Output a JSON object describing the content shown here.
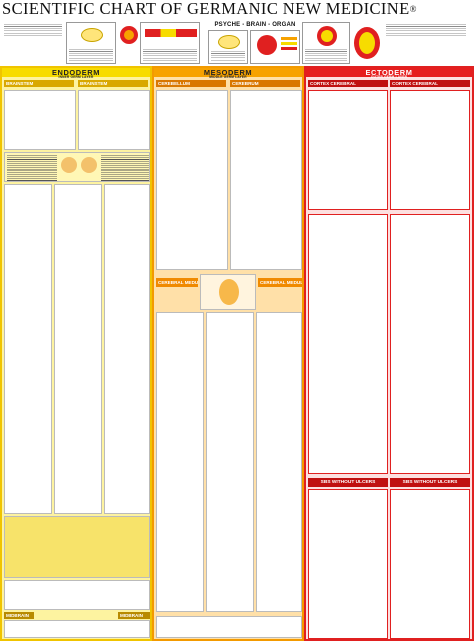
{
  "title": {
    "text": "SCIENTIFIC CHART OF GERMANIC NEW MEDICINE",
    "mark": "®"
  },
  "header": {
    "psyche_brain_organ": "PSYCHE - BRAIN - ORGAN"
  },
  "germ_layers": {
    "endoderm": {
      "name": "ENDODERM",
      "sub": "INNER GERM LAYER",
      "colors": {
        "fill": "#fdf3a0",
        "accent": "#f7dc00"
      }
    },
    "mesoderm": {
      "name": "MESODERM",
      "sub": "MIDDLE GERM LAYER",
      "colors": {
        "fill": "#ffe0a8",
        "accent": "#f7a200"
      }
    },
    "ectoderm": {
      "name": "ECTODERM",
      "sub": "OUTER GERM LAYER",
      "colors": {
        "fill": "#fde0e0",
        "accent": "#e61e1e"
      }
    }
  },
  "subsections": {
    "brainstem_left": "BRAINSTEM",
    "brainstem_right": "BRAINSTEM",
    "cerebellum": "CEREBELLUM",
    "cerebrum": "CEREBRUM",
    "cortex_left": "CORTEX CEREBRAL",
    "cortex_right": "CORTEX CEREBRAL",
    "cerebral_medulla_left": "CEREBRAL MEDULLA",
    "cerebral_medulla_right": "CEREBRAL MEDULLA",
    "sbs_without_ulcers_left": "SBS WITHOUT ULCERS",
    "sbs_without_ulcers_right": "SBS WITHOUT ULCERS",
    "midbrain_left": "MIDBRAIN",
    "midbrain_right": "MIDBRAIN"
  }
}
